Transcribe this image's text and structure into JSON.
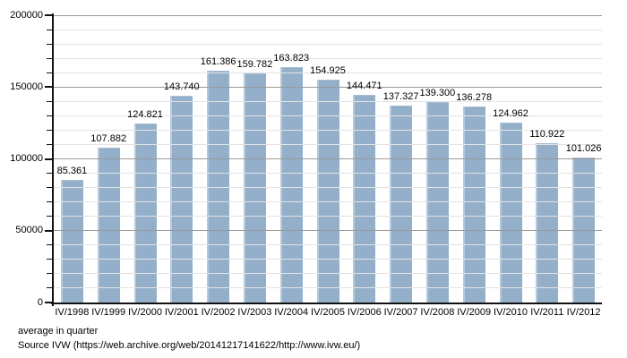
{
  "chart_data": {
    "type": "bar",
    "title": "",
    "xlabel": "",
    "ylabel": "",
    "categories": [
      "IV/1998",
      "IV/1999",
      "IV/2000",
      "IV/2001",
      "IV/2002",
      "IV/2003",
      "IV/2004",
      "IV/2005",
      "IV/2006",
      "IV/2007",
      "IV/2008",
      "IV/2009",
      "IV/2010",
      "IV/2011",
      "IV/2012"
    ],
    "values": [
      85361,
      107882,
      124821,
      143740,
      161386,
      159782,
      163823,
      154925,
      144471,
      137327,
      139300,
      136278,
      124962,
      110922,
      101026
    ],
    "value_labels": [
      "85.361",
      "107.882",
      "124.821",
      "143.740",
      "161.386",
      "159.782",
      "163.823",
      "154.925",
      "144.471",
      "137.327",
      "139.300",
      "136.278",
      "124.962",
      "110.922",
      "101.026"
    ],
    "ylim": [
      0,
      200000
    ],
    "y_major_ticks": [
      0,
      50000,
      100000,
      150000,
      200000
    ],
    "y_tick_labels": [
      "0",
      "50000",
      "100000",
      "150000",
      "200000"
    ],
    "y_minor_step": 10000,
    "grid": "horizontal minor and major lines, drawn over bars",
    "legend": "none",
    "bar_color": "#94afca"
  },
  "colors": {
    "bar": "#94afca",
    "bar_highlight": "#b7c8da",
    "grid_minor": "#e3e3e3",
    "grid_major": "#999999",
    "axis": "#111111",
    "text": "#000000",
    "background": "#ffffff"
  },
  "footer": {
    "note": "average in quarter",
    "source": "Source IVW (https://web.archive.org/web/20141217141622/http://www.ivw.eu/)"
  }
}
